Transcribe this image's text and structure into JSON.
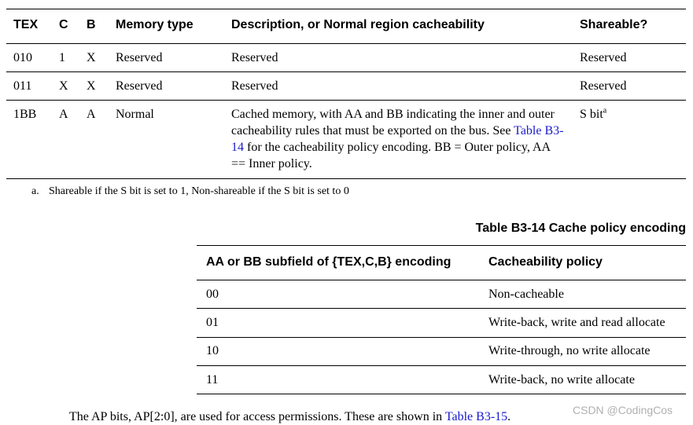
{
  "table1": {
    "headers": [
      "TEX",
      "C",
      "B",
      "Memory type",
      "Description, or Normal region cacheability",
      "Shareable?"
    ],
    "rows": [
      [
        "010",
        "1",
        "X",
        "Reserved",
        "Reserved",
        "Reserved"
      ],
      [
        "011",
        "X",
        "X",
        "Reserved",
        "Reserved",
        "Reserved"
      ],
      [
        "1BB",
        "A",
        "A",
        "Normal",
        "",
        "S bit"
      ]
    ],
    "row3_desc": {
      "before": "Cached memory, with AA and BB indicating the inner and outer cacheability rules that must be exported on the bus. See ",
      "link": "Table B3-14",
      "after": " for the cacheability policy encoding. BB = Outer policy, AA == Inner policy."
    },
    "footnote_marker": "a",
    "footnote_label": "a.",
    "footnote_text": "Shareable if the S bit is set to 1, Non-shareable if the S bit is set to 0"
  },
  "table2": {
    "title": "Table B3-14 Cache policy encoding",
    "headers": [
      "AA or BB subfield of {TEX,C,B} encoding",
      "Cacheability policy"
    ],
    "rows": [
      [
        "00",
        "Non-cacheable"
      ],
      [
        "01",
        "Write-back, write and read allocate"
      ],
      [
        "10",
        "Write-through, no write allocate"
      ],
      [
        "11",
        "Write-back, no write allocate"
      ]
    ]
  },
  "footer": {
    "before": "The AP bits, AP[2:0], are used for access permissions. These are shown in ",
    "link": "Table B3-15",
    "after": "."
  },
  "watermark": "CSDN @CodingCos",
  "colors": {
    "link": "#1a1acc",
    "watermark": "#b0b0b0"
  }
}
